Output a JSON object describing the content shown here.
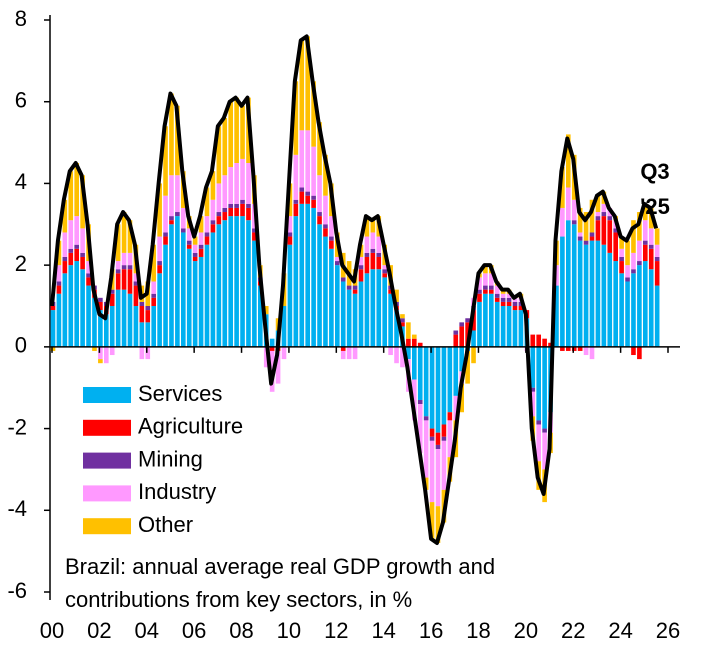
{
  "chart_data": {
    "type": "stacked_bar_line",
    "title": [
      "Brazil: annual average real GDP growth and",
      "contributions from key sectors, in %"
    ],
    "annotation": [
      "Q3",
      "'25"
    ],
    "x": [
      2000,
      2000.25,
      2000.5,
      2000.75,
      2001,
      2001.25,
      2001.5,
      2001.75,
      2002,
      2002.25,
      2002.5,
      2002.75,
      2003,
      2003.25,
      2003.5,
      2003.75,
      2004,
      2004.25,
      2004.5,
      2004.75,
      2005,
      2005.25,
      2005.5,
      2005.75,
      2006,
      2006.25,
      2006.5,
      2006.75,
      2007,
      2007.25,
      2007.5,
      2007.75,
      2008,
      2008.25,
      2008.5,
      2008.75,
      2009,
      2009.25,
      2009.5,
      2009.75,
      2010,
      2010.25,
      2010.5,
      2010.75,
      2011,
      2011.25,
      2011.5,
      2011.75,
      2012,
      2012.25,
      2012.5,
      2012.75,
      2013,
      2013.25,
      2013.5,
      2013.75,
      2014,
      2014.25,
      2014.5,
      2014.75,
      2015,
      2015.25,
      2015.5,
      2015.75,
      2016,
      2016.25,
      2016.5,
      2016.75,
      2017,
      2017.25,
      2017.5,
      2017.75,
      2018,
      2018.25,
      2018.5,
      2018.75,
      2019,
      2019.25,
      2019.5,
      2019.75,
      2020,
      2020.25,
      2020.5,
      2020.75,
      2021,
      2021.25,
      2021.5,
      2021.75,
      2022,
      2022.25,
      2022.5,
      2022.75,
      2023,
      2023.25,
      2023.5,
      2023.75,
      2024,
      2024.25,
      2024.5,
      2024.75,
      2025,
      2025.25,
      2025.5
    ],
    "series": [
      {
        "name": "Services",
        "color": "#00b0f0",
        "values": [
          0.9,
          1.3,
          1.8,
          2.0,
          2.1,
          1.9,
          1.5,
          1.2,
          0.9,
          0.8,
          1.0,
          1.4,
          1.4,
          1.3,
          1.0,
          0.6,
          0.6,
          1.0,
          1.8,
          2.5,
          3.0,
          3.2,
          2.8,
          2.4,
          2.1,
          2.2,
          2.5,
          2.8,
          3.0,
          3.1,
          3.2,
          3.2,
          3.2,
          3.1,
          2.6,
          1.5,
          0.8,
          0.2,
          0.4,
          1.0,
          2.5,
          3.2,
          3.5,
          3.5,
          3.4,
          3.0,
          2.7,
          2.4,
          2.0,
          1.6,
          1.4,
          1.3,
          1.6,
          1.8,
          1.9,
          1.9,
          1.7,
          1.3,
          0.9,
          0.5,
          -0.3,
          -0.8,
          -1.3,
          -1.7,
          -2.0,
          -2.1,
          -1.9,
          -1.6,
          -1.2,
          -0.6,
          -0.1,
          0.4,
          1.1,
          1.3,
          1.3,
          1.1,
          1.0,
          1.0,
          0.9,
          0.9,
          0.7,
          -1.0,
          -1.8,
          -2.0,
          -1.6,
          1.5,
          2.7,
          3.1,
          3.0,
          2.6,
          2.5,
          2.6,
          2.6,
          2.5,
          2.3,
          2.1,
          1.8,
          1.6,
          1.8,
          2.0,
          2.1,
          1.9,
          1.5
        ]
      },
      {
        "name": "Agriculture",
        "color": "#ff0000",
        "values": [
          0.1,
          0.2,
          0.3,
          0.3,
          0.3,
          0.3,
          0.2,
          0.2,
          0.2,
          0.2,
          0.3,
          0.4,
          0.5,
          0.6,
          0.5,
          0.4,
          0.3,
          0.2,
          0.2,
          0.2,
          0.1,
          0.0,
          0.0,
          0.1,
          0.1,
          0.2,
          0.2,
          0.2,
          0.2,
          0.2,
          0.2,
          0.2,
          0.3,
          0.3,
          0.2,
          0.1,
          0.0,
          -0.1,
          -0.1,
          0.0,
          0.2,
          0.3,
          0.3,
          0.2,
          0.2,
          0.2,
          0.2,
          0.2,
          0.0,
          -0.1,
          0.0,
          0.1,
          0.3,
          0.4,
          0.4,
          0.3,
          0.1,
          0.1,
          0.1,
          0.1,
          0.2,
          0.2,
          0.1,
          0.0,
          -0.2,
          -0.3,
          -0.3,
          -0.2,
          0.3,
          0.5,
          0.6,
          0.5,
          0.2,
          0.1,
          0.1,
          0.1,
          0.1,
          0.1,
          0.1,
          0.1,
          0.2,
          0.3,
          0.3,
          0.2,
          0.1,
          0.0,
          -0.1,
          -0.1,
          -0.1,
          -0.1,
          0.0,
          0.1,
          0.5,
          0.7,
          0.8,
          0.7,
          0.3,
          0.0,
          -0.2,
          -0.3,
          0.4,
          0.5,
          0.6
        ]
      },
      {
        "name": "Mining",
        "color": "#7030a0",
        "values": [
          0.1,
          0.1,
          0.1,
          0.1,
          0.1,
          0.1,
          0.1,
          0.1,
          0.1,
          0.1,
          0.1,
          0.1,
          0.1,
          0.1,
          0.1,
          0.1,
          0.1,
          0.1,
          0.1,
          0.1,
          0.1,
          0.1,
          0.1,
          0.1,
          0.1,
          0.1,
          0.1,
          0.1,
          0.1,
          0.1,
          0.1,
          0.1,
          0.1,
          0.1,
          0.1,
          0.1,
          0.0,
          0.0,
          0.0,
          0.0,
          0.1,
          0.1,
          0.1,
          0.1,
          0.1,
          0.1,
          0.1,
          0.1,
          0.1,
          0.1,
          0.1,
          0.1,
          0.1,
          0.1,
          0.1,
          0.1,
          0.1,
          0.1,
          0.1,
          0.1,
          0.0,
          0.0,
          -0.1,
          -0.1,
          -0.1,
          -0.1,
          -0.1,
          0.0,
          0.1,
          0.1,
          0.1,
          0.1,
          0.1,
          0.1,
          0.1,
          0.1,
          0.1,
          0.1,
          0.1,
          0.1,
          0.0,
          -0.1,
          -0.1,
          -0.1,
          0.0,
          0.0,
          0.0,
          0.0,
          0.1,
          0.1,
          0.1,
          0.1,
          0.1,
          0.1,
          0.1,
          0.1,
          0.1,
          0.1,
          0.1,
          0.1,
          0.1,
          0.1,
          0.1
        ]
      },
      {
        "name": "Industry",
        "color": "#ff99ff",
        "values": [
          0.0,
          0.4,
          0.6,
          0.7,
          0.7,
          0.6,
          0.3,
          0.0,
          -0.3,
          -0.4,
          -0.2,
          0.2,
          0.3,
          0.3,
          0.2,
          -0.3,
          -0.3,
          0.3,
          0.6,
          0.9,
          1.0,
          0.9,
          0.5,
          0.3,
          0.2,
          0.3,
          0.4,
          0.5,
          0.7,
          0.8,
          0.9,
          1.0,
          1.0,
          1.0,
          0.6,
          0.0,
          -0.5,
          -1.0,
          -0.8,
          -0.3,
          0.4,
          1.1,
          1.4,
          1.5,
          1.2,
          0.9,
          0.7,
          0.5,
          0.1,
          -0.2,
          -0.3,
          -0.3,
          0.2,
          0.4,
          0.4,
          0.4,
          0.1,
          -0.2,
          -0.4,
          -0.5,
          -0.8,
          -1.0,
          -1.2,
          -1.4,
          -1.5,
          -1.4,
          -1.2,
          -0.9,
          -0.6,
          -0.3,
          0.0,
          0.2,
          0.3,
          0.3,
          0.3,
          0.2,
          0.1,
          0.1,
          0.1,
          0.1,
          -0.1,
          -0.6,
          -0.9,
          -0.9,
          -0.5,
          0.5,
          0.7,
          0.8,
          0.5,
          0.1,
          -0.2,
          -0.3,
          0.1,
          0.2,
          0.2,
          0.2,
          0.2,
          0.3,
          0.4,
          0.5,
          0.5,
          0.4,
          0.3
        ]
      },
      {
        "name": "Other",
        "color": "#ffc000",
        "values": [
          -0.1,
          0.6,
          0.8,
          1.2,
          1.3,
          1.3,
          0.9,
          -0.1,
          -0.1,
          0.0,
          0.5,
          0.9,
          1.0,
          0.8,
          0.7,
          0.4,
          0.6,
          0.9,
          1.3,
          1.7,
          2.0,
          1.7,
          0.9,
          0.3,
          0.2,
          0.4,
          0.7,
          0.7,
          1.4,
          1.4,
          1.6,
          1.6,
          1.3,
          1.6,
          0.7,
          0.3,
          0.2,
          0.0,
          0.3,
          0.8,
          0.8,
          1.8,
          2.2,
          2.3,
          1.6,
          1.3,
          1.0,
          0.8,
          0.6,
          0.6,
          0.6,
          0.4,
          0.3,
          0.5,
          0.3,
          0.5,
          0.5,
          0.5,
          0.3,
          0.1,
          0.4,
          0.1,
          0.0,
          -0.3,
          -0.9,
          -0.9,
          -0.8,
          -0.6,
          -0.9,
          -0.7,
          -0.8,
          -0.4,
          0.1,
          0.2,
          0.2,
          0.1,
          0.1,
          0.1,
          0.0,
          0.1,
          0.0,
          -0.6,
          -0.7,
          -0.8,
          -0.5,
          0.6,
          1.0,
          1.3,
          1.1,
          0.6,
          0.7,
          0.8,
          0.4,
          0.3,
          0.0,
          0.1,
          0.3,
          0.6,
          0.8,
          0.7,
          0.4,
          0.5,
          0.4
        ]
      }
    ],
    "total": {
      "color": "#000000",
      "values": [
        1.0,
        2.6,
        3.6,
        4.3,
        4.5,
        4.2,
        3.0,
        1.4,
        0.8,
        0.7,
        1.7,
        3.0,
        3.3,
        3.1,
        2.5,
        1.2,
        1.3,
        2.5,
        4.0,
        5.4,
        6.2,
        5.9,
        4.3,
        3.2,
        2.7,
        3.2,
        3.9,
        4.3,
        5.4,
        5.6,
        6.0,
        6.1,
        5.9,
        6.1,
        4.2,
        2.0,
        0.5,
        -0.9,
        -0.2,
        1.5,
        4.0,
        6.5,
        7.5,
        7.6,
        6.5,
        5.5,
        4.7,
        4.0,
        2.8,
        2.0,
        1.8,
        1.6,
        2.5,
        3.2,
        3.1,
        3.2,
        2.5,
        1.8,
        1.0,
        0.3,
        -0.5,
        -1.5,
        -2.5,
        -3.5,
        -4.7,
        -4.8,
        -4.3,
        -3.3,
        -2.3,
        -1.0,
        -0.2,
        0.8,
        1.8,
        2.0,
        2.0,
        1.6,
        1.4,
        1.4,
        1.2,
        1.3,
        0.8,
        -2.0,
        -3.2,
        -3.6,
        -2.5,
        2.6,
        4.3,
        5.1,
        4.6,
        3.3,
        3.1,
        3.3,
        3.7,
        3.8,
        3.4,
        3.2,
        2.7,
        2.6,
        2.9,
        3.0,
        3.5,
        3.4,
        2.9
      ]
    },
    "xlim": [
      2000,
      2026
    ],
    "xticks": [
      {
        "value": 2000,
        "label": "00"
      },
      {
        "value": 2002,
        "label": "02"
      },
      {
        "value": 2004,
        "label": "04"
      },
      {
        "value": 2006,
        "label": "06"
      },
      {
        "value": 2008,
        "label": "08"
      },
      {
        "value": 2010,
        "label": "10"
      },
      {
        "value": 2012,
        "label": "12"
      },
      {
        "value": 2014,
        "label": "14"
      },
      {
        "value": 2016,
        "label": "16"
      },
      {
        "value": 2018,
        "label": "18"
      },
      {
        "value": 2020,
        "label": "20"
      },
      {
        "value": 2022,
        "label": "22"
      },
      {
        "value": 2024,
        "label": "24"
      },
      {
        "value": 2026,
        "label": "26"
      }
    ],
    "ylim": [
      -6,
      8
    ],
    "yticks": [
      8,
      6,
      4,
      2,
      0,
      -2,
      -4,
      -6
    ]
  }
}
